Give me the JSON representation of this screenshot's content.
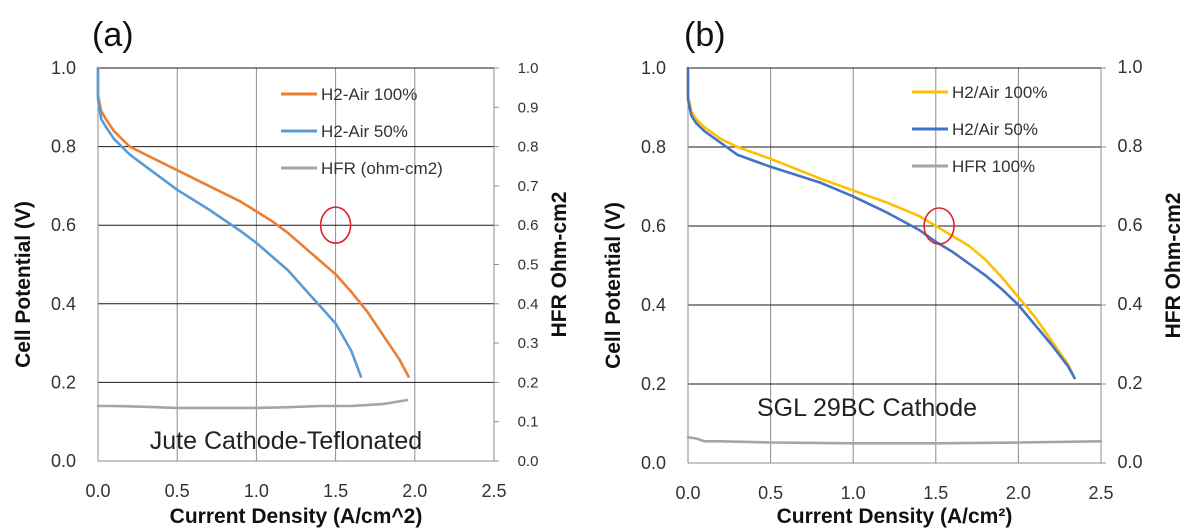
{
  "chart_data": [
    {
      "type": "line",
      "panel_label": "(a)",
      "xlabel": "Current Density (A/cm^2)",
      "ylabel": "Cell Potential (V)",
      "y2label": "HFR Ohm-cm2",
      "xlim": [
        0,
        2.5
      ],
      "ylim": [
        0,
        1.0
      ],
      "y2lim": [
        0,
        1.0
      ],
      "xticks": [
        "0.0",
        "0.5",
        "1.0",
        "1.5",
        "2.0",
        "2.5"
      ],
      "yticks": [
        "0.0",
        "0.2",
        "0.4",
        "0.6",
        "0.8",
        "1.0"
      ],
      "y2ticks": [
        "0.0",
        "0.1",
        "0.2",
        "0.3",
        "0.4",
        "0.5",
        "0.6",
        "0.7",
        "0.8",
        "0.9",
        "1.0"
      ],
      "grid": true,
      "legend_position": "top-right",
      "annotation": "Jute Cathode-Teflonated",
      "highlight": {
        "x": 1.5,
        "y": 0.6,
        "color": "#e0202a"
      },
      "series": [
        {
          "name": "H2-Air 100%",
          "color": "#ED7D31",
          "axis": "left",
          "x": [
            0.0,
            0.0,
            0.02,
            0.05,
            0.1,
            0.2,
            0.3,
            0.5,
            0.7,
            0.9,
            1.0,
            1.1,
            1.2,
            1.3,
            1.4,
            1.5,
            1.6,
            1.7,
            1.8,
            1.9,
            1.96
          ],
          "y": [
            1.0,
            0.93,
            0.89,
            0.87,
            0.84,
            0.8,
            0.78,
            0.74,
            0.7,
            0.66,
            0.635,
            0.61,
            0.58,
            0.545,
            0.51,
            0.475,
            0.43,
            0.38,
            0.32,
            0.26,
            0.215
          ]
        },
        {
          "name": "H2-Air 50%",
          "color": "#5B9BD5",
          "axis": "left",
          "x": [
            0.0,
            0.0,
            0.02,
            0.05,
            0.1,
            0.2,
            0.3,
            0.5,
            0.7,
            0.9,
            1.0,
            1.1,
            1.2,
            1.3,
            1.4,
            1.5,
            1.6,
            1.66
          ],
          "y": [
            1.0,
            0.92,
            0.87,
            0.85,
            0.82,
            0.78,
            0.75,
            0.69,
            0.64,
            0.585,
            0.555,
            0.52,
            0.485,
            0.44,
            0.395,
            0.35,
            0.28,
            0.215
          ]
        },
        {
          "name": "HFR (ohm-cm2)",
          "color": "#A5A5A5",
          "axis": "right",
          "x": [
            0.0,
            0.1,
            0.3,
            0.5,
            0.8,
            1.0,
            1.2,
            1.4,
            1.6,
            1.8,
            1.95
          ],
          "y": [
            0.14,
            0.14,
            0.138,
            0.135,
            0.135,
            0.135,
            0.137,
            0.14,
            0.14,
            0.145,
            0.155
          ]
        }
      ]
    },
    {
      "type": "line",
      "panel_label": "(b)",
      "xlabel": "Current Density (A/cm²)",
      "ylabel": "Cell Potential (V)",
      "y2label": "HFR Ohm-cm2",
      "xlim": [
        0,
        2.5
      ],
      "ylim": [
        0,
        1.0
      ],
      "y2lim": [
        0,
        1.0
      ],
      "xticks": [
        "0.0",
        "0.5",
        "1.0",
        "1.5",
        "2.0",
        "2.5"
      ],
      "yticks": [
        "0.0",
        "0.2",
        "0.4",
        "0.6",
        "0.8",
        "1.0"
      ],
      "y2ticks": [
        "0.0",
        "0.2",
        "0.4",
        "0.6",
        "0.8",
        "1.0"
      ],
      "grid": true,
      "legend_position": "top-right",
      "annotation": "SGL 29BC Cathode",
      "highlight": {
        "x": 1.52,
        "y": 0.6,
        "color": "#e0202a"
      },
      "series": [
        {
          "name": "H2/Air 100%",
          "color": "#FFC000",
          "axis": "left",
          "x": [
            0.0,
            0.0,
            0.02,
            0.05,
            0.1,
            0.2,
            0.3,
            0.5,
            0.8,
            1.0,
            1.2,
            1.4,
            1.5,
            1.6,
            1.7,
            1.8,
            1.9,
            2.0,
            2.1,
            2.2,
            2.3,
            2.34
          ],
          "y": [
            1.0,
            0.93,
            0.89,
            0.87,
            0.85,
            0.82,
            0.8,
            0.77,
            0.72,
            0.69,
            0.66,
            0.625,
            0.6,
            0.575,
            0.55,
            0.515,
            0.47,
            0.42,
            0.37,
            0.31,
            0.25,
            0.215
          ]
        },
        {
          "name": "H2/Air 50%",
          "color": "#4472C4",
          "axis": "left",
          "x": [
            0.0,
            0.0,
            0.02,
            0.05,
            0.1,
            0.2,
            0.3,
            0.5,
            0.8,
            1.0,
            1.2,
            1.4,
            1.5,
            1.6,
            1.7,
            1.8,
            1.9,
            2.0,
            2.1,
            2.2,
            2.3,
            2.34
          ],
          "y": [
            1.0,
            0.92,
            0.88,
            0.86,
            0.84,
            0.81,
            0.78,
            0.75,
            0.71,
            0.675,
            0.635,
            0.59,
            0.56,
            0.535,
            0.505,
            0.475,
            0.44,
            0.4,
            0.35,
            0.3,
            0.245,
            0.215
          ]
        },
        {
          "name": "HFR 100%",
          "color": "#A5A5A5",
          "axis": "right",
          "x": [
            0.0,
            0.05,
            0.1,
            0.2,
            0.5,
            1.0,
            1.5,
            2.0,
            2.5
          ],
          "y": [
            0.065,
            0.062,
            0.055,
            0.055,
            0.052,
            0.05,
            0.05,
            0.052,
            0.055
          ]
        }
      ]
    }
  ]
}
